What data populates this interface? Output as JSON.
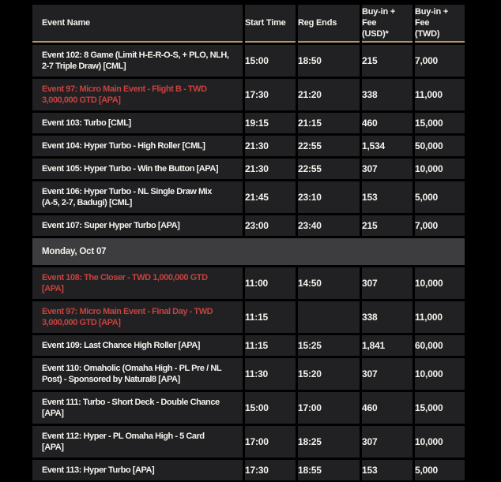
{
  "colors": {
    "page_bg": "#000000",
    "row_bg": "#212124",
    "header_bg": "#212124",
    "section_bg": "#3d3d40",
    "text": "#f5f2ec",
    "highlight_red": "#c7423e",
    "gold_accent": "#b29764"
  },
  "table": {
    "columns": [
      {
        "label": "Event Name"
      },
      {
        "label": "Start Time"
      },
      {
        "label": "Reg Ends"
      },
      {
        "label": "Buy-in +\nFee\n(USD)*"
      },
      {
        "label": "Buy-in +\nFee\n(TWD)"
      }
    ],
    "rows": [
      {
        "type": "event",
        "name": "Event 102: 8 Game (Limit H-E-R-O-S, + PLO, NLH,\n2-7 Triple Draw) [CML]",
        "start": "15:00",
        "reg": "18:50",
        "usd": "215",
        "twd": "7,000",
        "highlighted": false
      },
      {
        "type": "event",
        "name": "Event 97: Micro Main Event - Flight B - TWD\n3,000,000 GTD [APA]",
        "start": "17:30",
        "reg": "21:20",
        "usd": "338",
        "twd": "11,000",
        "highlighted": true
      },
      {
        "type": "event",
        "name": "Event 103: Turbo [CML]",
        "start": "19:15",
        "reg": "21:15",
        "usd": "460",
        "twd": "15,000",
        "highlighted": false
      },
      {
        "type": "event",
        "name": "Event 104: Hyper Turbo - High Roller [CML]",
        "start": "21:30",
        "reg": "22:55",
        "usd": "1,534",
        "twd": "50,000",
        "highlighted": false
      },
      {
        "type": "event",
        "name": "Event 105: Hyper Turbo - Win the Button [APA]",
        "start": "21:30",
        "reg": "22:55",
        "usd": "307",
        "twd": "10,000",
        "highlighted": false
      },
      {
        "type": "event",
        "name": "Event 106: Hyper Turbo - NL Single Draw Mix\n(A-5, 2-7, Badugi) [CML]",
        "start": "21:45",
        "reg": "23:10",
        "usd": "153",
        "twd": "5,000",
        "highlighted": false
      },
      {
        "type": "event",
        "name": "Event 107: Super Hyper Turbo  [APA]",
        "start": "23:00",
        "reg": "23:40",
        "usd": "215",
        "twd": "7,000",
        "highlighted": false
      },
      {
        "type": "section",
        "label": "Monday, Oct 07"
      },
      {
        "type": "event",
        "name": "Event 108: The Closer - TWD 1,000,000 GTD\n[APA]",
        "start": "11:00",
        "reg": "14:50",
        "usd": "307",
        "twd": "10,000",
        "highlighted": true
      },
      {
        "type": "event",
        "name": "Event 97: Micro Main Event - Final Day - TWD\n3,000,000 GTD [APA]",
        "start": "11:15",
        "reg": "",
        "usd": "338",
        "twd": "11,000",
        "highlighted": true
      },
      {
        "type": "event",
        "name": "Event 109: Last Chance High Roller [APA]",
        "start": "11:15",
        "reg": "15:25",
        "usd": "1,841",
        "twd": "60,000",
        "highlighted": false
      },
      {
        "type": "event",
        "name": "Event 110: Omaholic (Omaha High - PL Pre / NL\nPost) - Sponsored by Natural8 [APA]",
        "start": "11:30",
        "reg": "15:20",
        "usd": "307",
        "twd": "10,000",
        "highlighted": false
      },
      {
        "type": "event",
        "name": "Event 111: Turbo - Short Deck - Double Chance\n[APA]",
        "start": "15:00",
        "reg": "17:00",
        "usd": "460",
        "twd": "15,000",
        "highlighted": false
      },
      {
        "type": "event",
        "name": "Event 112: Hyper - PL Omaha High - 5 Card\n[APA]",
        "start": "17:00",
        "reg": "18:25",
        "usd": "307",
        "twd": "10,000",
        "highlighted": false
      },
      {
        "type": "event",
        "name": "Event 113: Hyper Turbo  [APA]",
        "start": "17:30",
        "reg": "18:55",
        "usd": "153",
        "twd": "5,000",
        "highlighted": false
      }
    ]
  }
}
